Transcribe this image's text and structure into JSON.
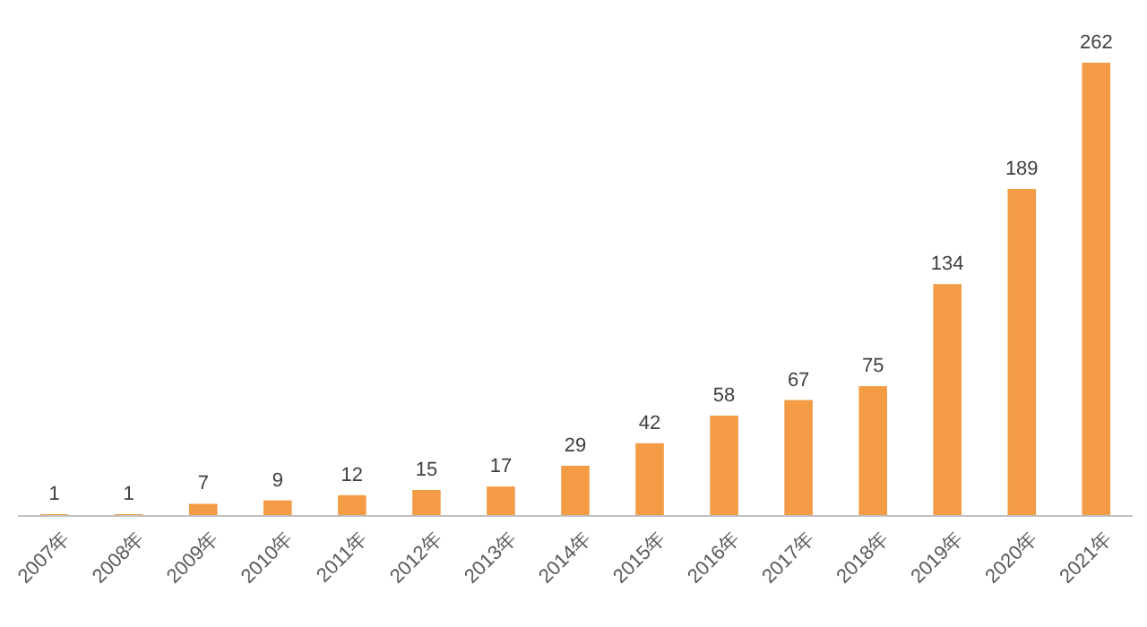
{
  "chart_data": {
    "type": "bar",
    "categories": [
      "2007年",
      "2008年",
      "2009年",
      "2010年",
      "2011年",
      "2012年",
      "2013年",
      "2014年",
      "2015年",
      "2016年",
      "2017年",
      "2018年",
      "2019年",
      "2020年",
      "2021年"
    ],
    "values": [
      1,
      1,
      7,
      9,
      12,
      15,
      17,
      29,
      42,
      58,
      67,
      75,
      134,
      189,
      262
    ],
    "color": "#f39b45",
    "data_labels": true
  }
}
